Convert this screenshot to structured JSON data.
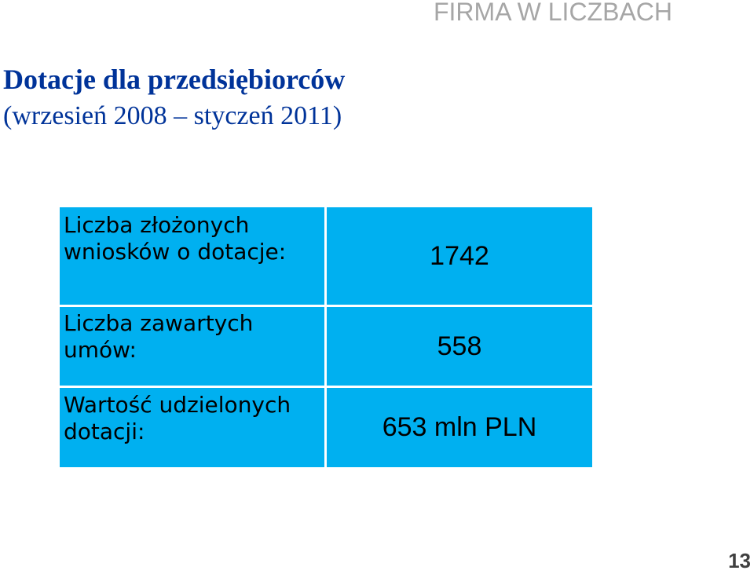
{
  "header": {
    "label": "FIRMA W LICZBACH"
  },
  "slide": {
    "title": "Dotacje dla przedsiębiorców",
    "subtitle": "(wrzesień 2008  – styczeń 2011)"
  },
  "table": {
    "rows": [
      {
        "label": "Liczba złożonych wniosków o dotacje:",
        "value": "1742"
      },
      {
        "label": "Liczba zawartych umów:",
        "value": "558"
      },
      {
        "label": "Wartość udzielonych dotacji:",
        "value": "653 mln PLN"
      }
    ]
  },
  "footer": {
    "page_number": "13"
  },
  "colors": {
    "accent": "#00b0f0",
    "title": "#003399",
    "header_label": "#a6a6a6"
  }
}
